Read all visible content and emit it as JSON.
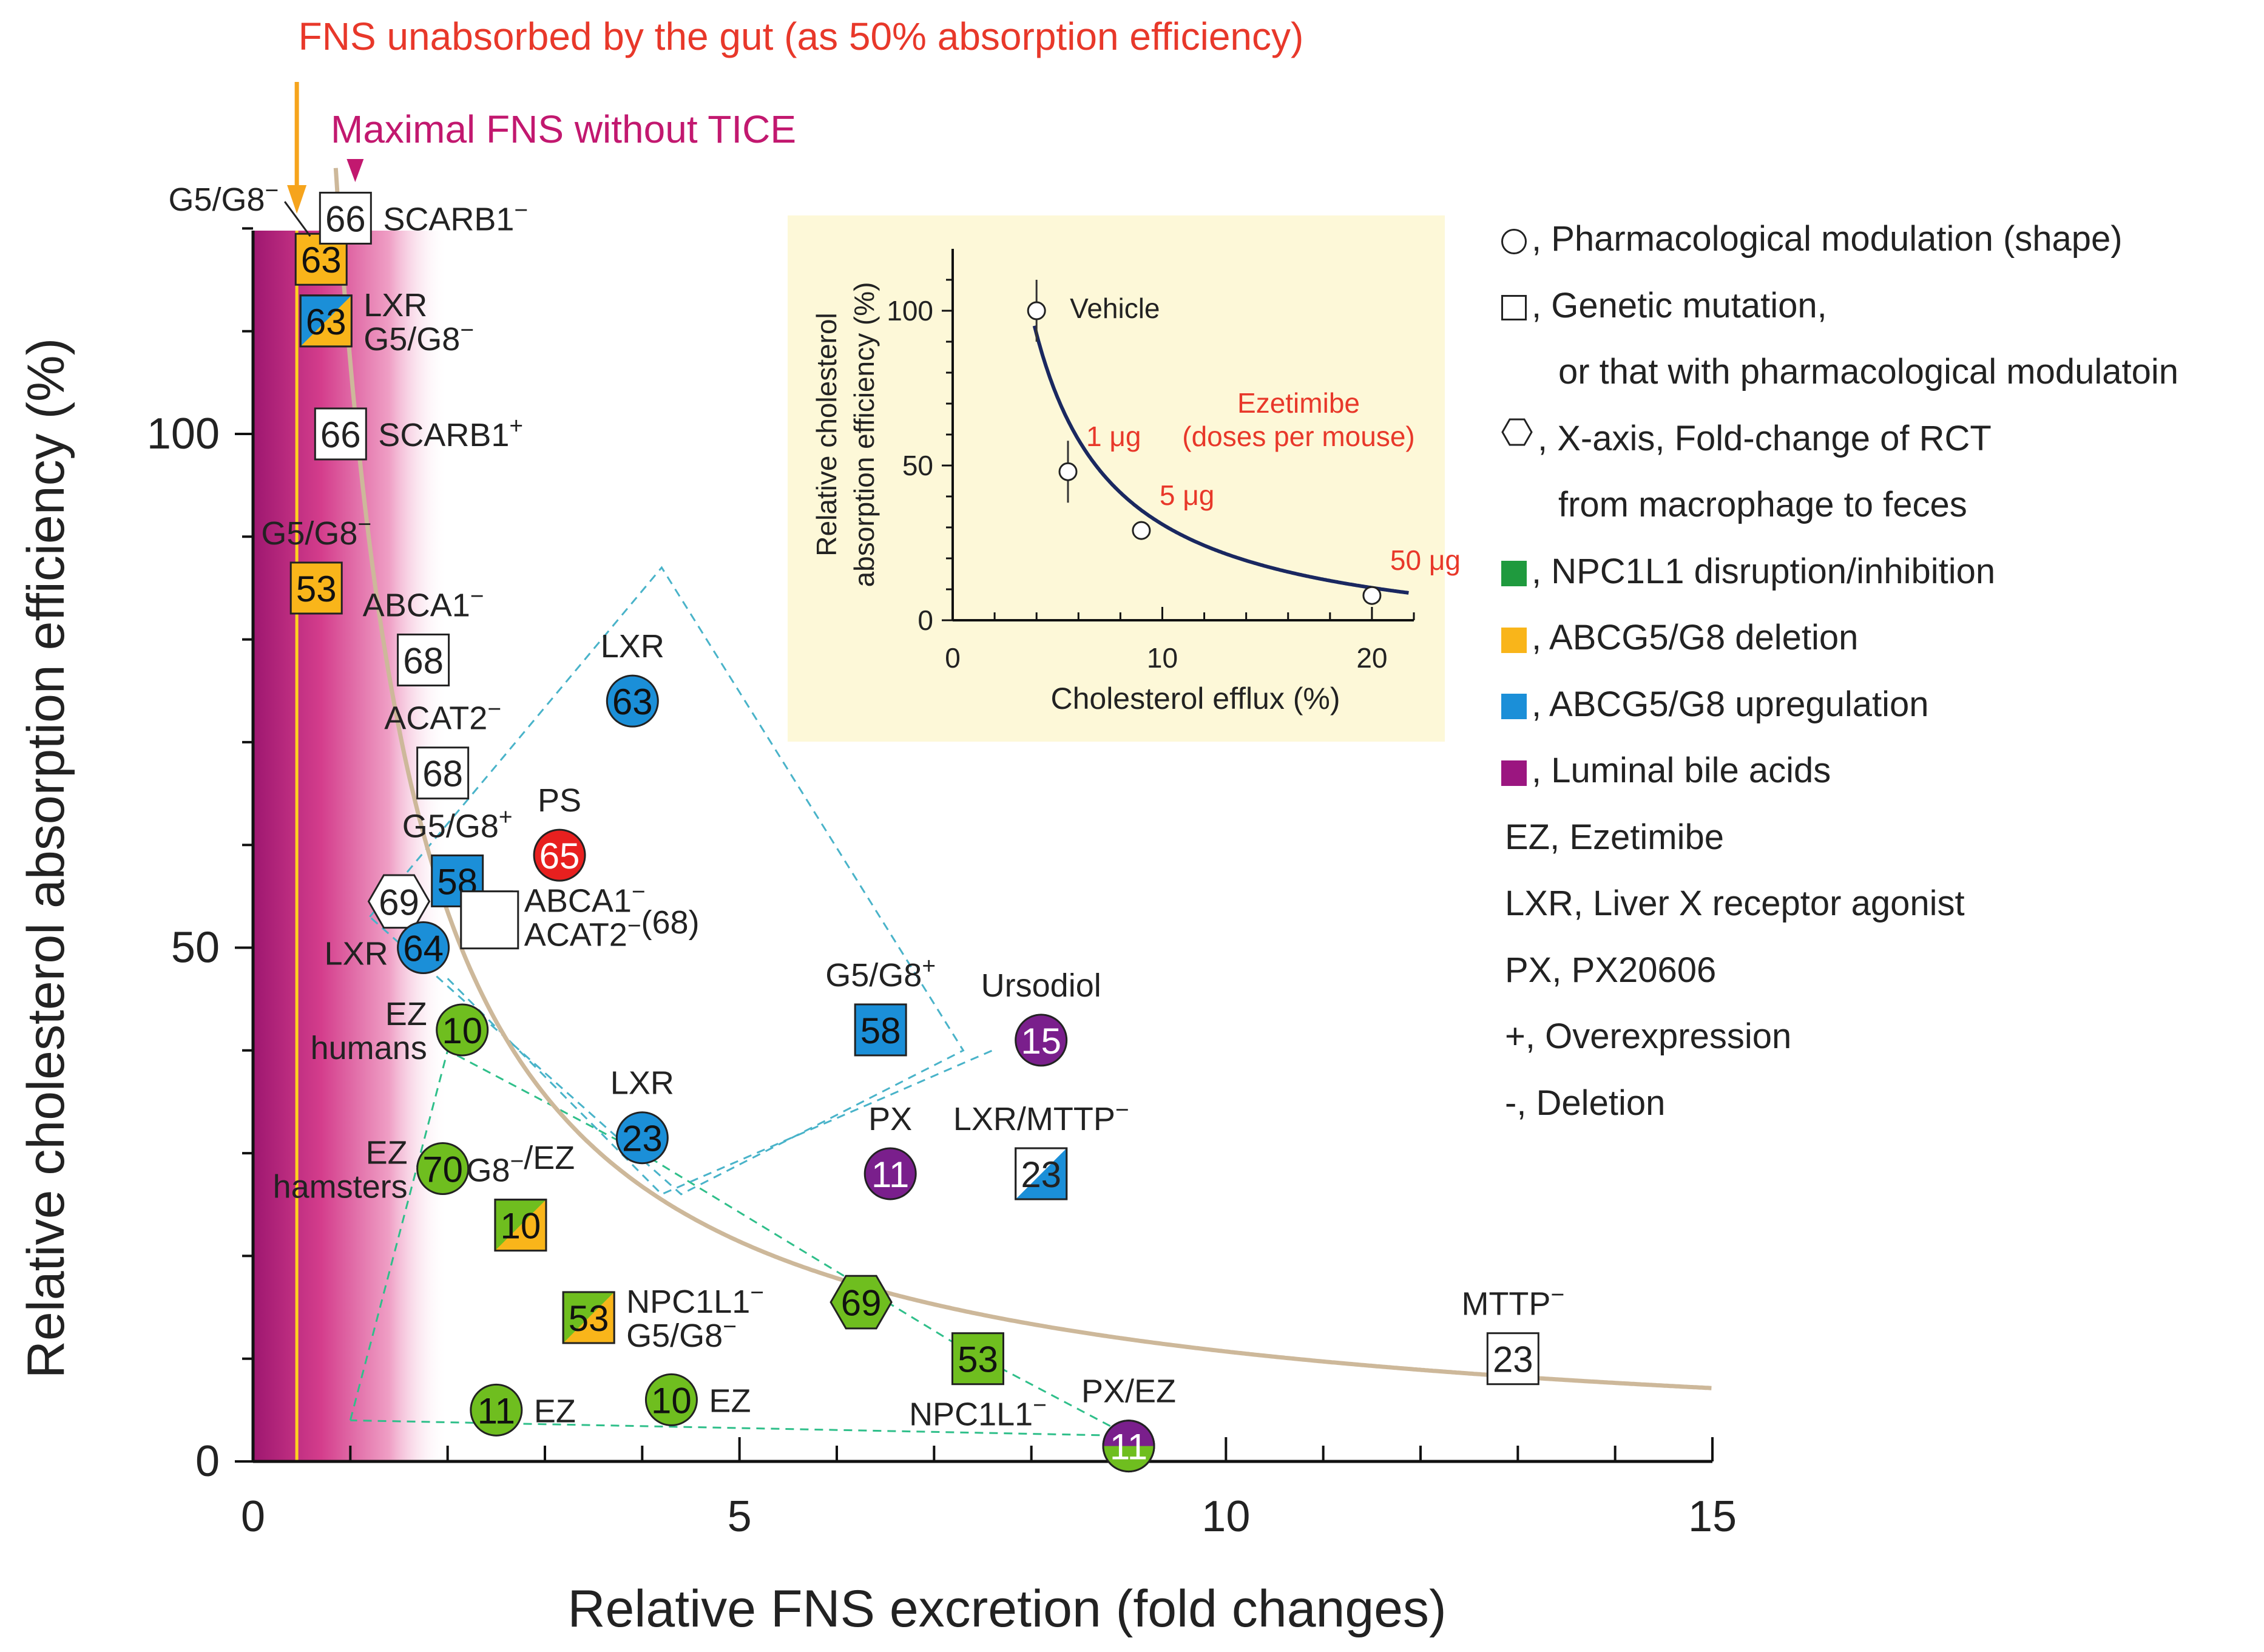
{
  "chart_data": {
    "type": "scatter",
    "xlabel": "Relative FNS excretion (fold changes)",
    "ylabel": "Relative cholesterol absorption efficiency (%)",
    "xlim": [
      0,
      15
    ],
    "ylim": [
      0,
      120
    ],
    "x_ticks": [
      "0",
      "5",
      "10",
      "15"
    ],
    "y_ticks": [
      "0",
      "50",
      "100"
    ],
    "x_tick_values": [
      0,
      5,
      10,
      15
    ],
    "y_tick_values": [
      0,
      50,
      100
    ],
    "annotations": {
      "unabsorbed": "FNS unabsorbed by the gut (as 50% absorption efficiency)",
      "maximal": "Maximal FNS without TICE",
      "unabsorbed_x": 0.45,
      "maximal_x": 1.05
    },
    "curve": {
      "type": "hyperbola",
      "k": 107,
      "x_start": 0.85,
      "x_end": 15
    },
    "points": [
      {
        "ref": "63",
        "shape": "square",
        "fill": "orange",
        "x": 0.7,
        "y": 117,
        "label": "G5/G8⁻",
        "label_pos": "top-left-leader"
      },
      {
        "ref": "66",
        "shape": "square",
        "fill": "white",
        "x": 0.95,
        "y": 121,
        "label": "SCARB1⁻",
        "label_pos": "right"
      },
      {
        "ref": "63",
        "shape": "square",
        "fill": "blue-orange",
        "x": 0.75,
        "y": 111,
        "label": "LXR\nG5/G8⁻",
        "label_pos": "right"
      },
      {
        "ref": "66",
        "shape": "square",
        "fill": "white",
        "x": 0.9,
        "y": 100,
        "label": "SCARB1⁺",
        "label_pos": "right"
      },
      {
        "ref": "53",
        "shape": "square",
        "fill": "orange",
        "x": 0.65,
        "y": 85,
        "label": "G5/G8⁻",
        "label_pos": "top"
      },
      {
        "ref": "68",
        "shape": "square",
        "fill": "white",
        "x": 1.75,
        "y": 78,
        "label": "ABCA1⁻",
        "label_pos": "top"
      },
      {
        "ref": "63",
        "shape": "circle",
        "fill": "blue",
        "x": 3.9,
        "y": 74,
        "label": "LXR",
        "label_pos": "top"
      },
      {
        "ref": "68",
        "shape": "square",
        "fill": "white",
        "x": 1.95,
        "y": 67,
        "label": "ACAT2⁻",
        "label_pos": "top"
      },
      {
        "ref": "65",
        "shape": "circle",
        "fill": "red",
        "x": 3.15,
        "y": 59,
        "label": "PS",
        "label_pos": "top"
      },
      {
        "ref": "58",
        "shape": "square",
        "fill": "blue",
        "x": 2.1,
        "y": 56.5,
        "label": "G5/G8⁺",
        "label_pos": "top"
      },
      {
        "ref": "69",
        "shape": "hexagon",
        "fill": "white",
        "x": 1.5,
        "y": 54.5,
        "label": "",
        "label_pos": "none"
      },
      {
        "ref": "",
        "shape": "square",
        "fill": "white",
        "x": 2.4,
        "y": 53,
        "label": "ABCA1⁻\nACAT2⁻(68)",
        "label_pos": "right"
      },
      {
        "ref": "64",
        "shape": "circle",
        "fill": "blue",
        "x": 1.75,
        "y": 50,
        "label": "LXR",
        "label_pos": "left"
      },
      {
        "ref": "10",
        "shape": "circle",
        "fill": "green",
        "x": 2.15,
        "y": 42,
        "label": "EZ\nhumans",
        "label_pos": "left"
      },
      {
        "ref": "58",
        "shape": "square",
        "fill": "blue",
        "x": 6.45,
        "y": 42,
        "label": "G5/G8⁺",
        "label_pos": "top"
      },
      {
        "ref": "15",
        "shape": "circle",
        "fill": "purple",
        "x": 8.1,
        "y": 41,
        "label": "Ursodiol",
        "label_pos": "top"
      },
      {
        "ref": "23",
        "shape": "circle",
        "fill": "blue",
        "x": 4.0,
        "y": 31.5,
        "label": "LXR",
        "label_pos": "top"
      },
      {
        "ref": "11",
        "shape": "circle",
        "fill": "purple",
        "x": 6.55,
        "y": 28,
        "label": "PX",
        "label_pos": "top"
      },
      {
        "ref": "23",
        "shape": "square",
        "fill": "white-blue",
        "x": 8.1,
        "y": 28,
        "label": "LXR/MTTP⁻",
        "label_pos": "top"
      },
      {
        "ref": "70",
        "shape": "circle",
        "fill": "green",
        "x": 1.95,
        "y": 28.5,
        "label": "EZ\nhamsters",
        "label_pos": "left"
      },
      {
        "ref": "10",
        "shape": "square",
        "fill": "green-orange",
        "x": 2.75,
        "y": 23,
        "label": "G8⁻/EZ",
        "label_pos": "top"
      },
      {
        "ref": "53",
        "shape": "square",
        "fill": "green-orange",
        "x": 3.45,
        "y": 14,
        "label": "NPC1L1⁻\nG5/G8⁻",
        "label_pos": "right"
      },
      {
        "ref": "69",
        "shape": "hexagon",
        "fill": "green",
        "x": 6.25,
        "y": 15.5,
        "label": "",
        "label_pos": "none"
      },
      {
        "ref": "53",
        "shape": "square",
        "fill": "green",
        "x": 7.45,
        "y": 10,
        "label": "NPC1L1⁻",
        "label_pos": "bottom"
      },
      {
        "ref": "23",
        "shape": "square",
        "fill": "white",
        "x": 12.95,
        "y": 10,
        "label": "MTTP⁻",
        "label_pos": "top"
      },
      {
        "ref": "11",
        "shape": "circle",
        "fill": "green",
        "x": 2.5,
        "y": 5,
        "label": "EZ",
        "label_pos": "right"
      },
      {
        "ref": "10",
        "shape": "circle",
        "fill": "green",
        "x": 4.3,
        "y": 6,
        "label": "EZ",
        "label_pos": "right"
      },
      {
        "ref": "11",
        "shape": "circle",
        "fill": "purple-green",
        "x": 9.0,
        "y": 1.5,
        "label": "PX/EZ",
        "label_pos": "top"
      }
    ],
    "inset": {
      "type": "line",
      "xlabel": "Cholesterol efflux (%)",
      "ylabel": "Relative cholesterol absorption efficiency (%)",
      "ylabel_line1": "Relative cholesterol",
      "ylabel_line2": "absorption efficiency (%)",
      "xlim": [
        0,
        22
      ],
      "ylim": [
        0,
        120
      ],
      "x_ticks": [
        "0",
        "10",
        "20"
      ],
      "y_ticks": [
        "0",
        "50",
        "100"
      ],
      "x_tick_values": [
        0,
        10,
        20
      ],
      "y_tick_values": [
        0,
        50,
        100
      ],
      "title": "Ezetimibe",
      "subtitle": "(doses per mouse)",
      "points": [
        {
          "x": 4.0,
          "y": 100,
          "err": 10,
          "label": "Vehicle"
        },
        {
          "x": 5.5,
          "y": 48,
          "err": 10,
          "label": "1 μg"
        },
        {
          "x": 9.0,
          "y": 29,
          "err": 3,
          "label": "5 μg"
        },
        {
          "x": 20.0,
          "y": 8,
          "err": 2,
          "label": "50 μg"
        }
      ]
    }
  },
  "legend": [
    {
      "symbol": "circle",
      "text": ", Pharmacological modulation (shape)"
    },
    {
      "symbol": "square",
      "text": ", Genetic mutation,"
    },
    {
      "symbol": "none",
      "text": "or that with pharmacological modulatoin"
    },
    {
      "symbol": "hexagon",
      "text": ", X-axis, Fold-change of RCT"
    },
    {
      "symbol": "none",
      "text": "from macrophage to feces"
    },
    {
      "symbol": "green",
      "text": ", NPC1L1 disruption/inhibition"
    },
    {
      "symbol": "orange",
      "text": ", ABCG5/G8 deletion"
    },
    {
      "symbol": "blue",
      "text": ", ABCG5/G8 upregulation"
    },
    {
      "symbol": "purple",
      "text": ", Luminal bile acids"
    },
    {
      "symbol": "none-left",
      "text": "EZ, Ezetimibe"
    },
    {
      "symbol": "none-left",
      "text": "LXR, Liver X receptor agonist"
    },
    {
      "symbol": "none-left",
      "text": "PX, PX20606"
    },
    {
      "symbol": "none-left",
      "text": "+, Overexpression"
    },
    {
      "symbol": "none-left",
      "text": "-, Deletion"
    }
  ],
  "colors": {
    "green": "#6fbe1f",
    "green_dark": "#1f9a3e",
    "orange": "#f9b51a",
    "blue": "#1b8fd8",
    "purple": "#7a1f8c",
    "magenta": "#9b1680",
    "red": "#e8201f",
    "curve": "#cdb89a",
    "annotation_red": "#e8382a",
    "annotation_magenta": "#c2186f",
    "arrow_orange": "#f6a41c",
    "inset_bg": "#fdf8d8",
    "inset_curve": "#1a2860",
    "dash": "#49b3c9"
  }
}
